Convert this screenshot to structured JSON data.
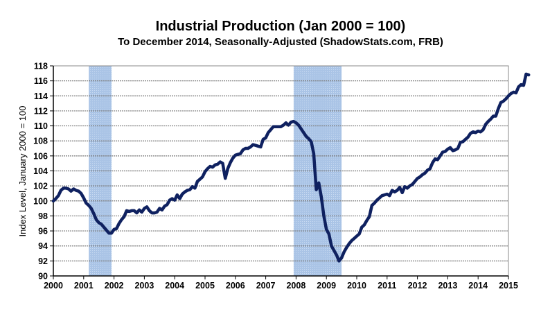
{
  "chart_data": {
    "type": "line",
    "title": "Industrial Production (Jan 2000 = 100)",
    "subtitle": "To December 2014, Seasonally-Adjusted (ShadowStats.com, FRB)",
    "xlabel": "",
    "ylabel": "Index Level, January 2000 = 100",
    "xlim": [
      2000,
      2015
    ],
    "ylim": [
      90,
      118
    ],
    "x_ticks": [
      "2000",
      "2001",
      "2002",
      "2003",
      "2004",
      "2005",
      "2006",
      "2007",
      "2008",
      "2009",
      "2010",
      "2011",
      "2012",
      "2013",
      "2014",
      "2015"
    ],
    "y_ticks": [
      "90",
      "92",
      "94",
      "96",
      "98",
      "100",
      "102",
      "104",
      "106",
      "108",
      "110",
      "112",
      "114",
      "116",
      "118"
    ],
    "grid": "horizontal",
    "legend": "none",
    "recessions": [
      {
        "start": 2001.17,
        "end": 2001.92
      },
      {
        "start": 2007.92,
        "end": 2009.5
      }
    ],
    "colors": {
      "line": "#0f2160",
      "recession": "#aac4e6",
      "grid": "#7a7a7a",
      "axis": "#000000"
    },
    "series": [
      {
        "name": "Industrial Production Index",
        "start": 2000.0,
        "step": 0.08333,
        "values": [
          100.0,
          100.3,
          100.7,
          101.4,
          101.7,
          101.7,
          101.6,
          101.3,
          101.6,
          101.4,
          101.3,
          101.0,
          100.4,
          99.7,
          99.4,
          99.0,
          98.3,
          97.5,
          97.1,
          96.9,
          96.5,
          96.1,
          95.7,
          95.7,
          96.2,
          96.3,
          97.0,
          97.5,
          97.9,
          98.7,
          98.6,
          98.7,
          98.7,
          98.4,
          98.8,
          98.5,
          99.0,
          99.2,
          98.7,
          98.4,
          98.4,
          98.5,
          99.0,
          98.8,
          99.3,
          99.5,
          100.1,
          100.3,
          100.1,
          100.8,
          100.3,
          100.9,
          101.2,
          101.4,
          101.5,
          101.9,
          101.7,
          102.6,
          102.9,
          103.2,
          103.9,
          104.3,
          104.6,
          104.5,
          104.8,
          104.9,
          105.2,
          105.0,
          103.0,
          104.3,
          105.1,
          105.7,
          106.1,
          106.2,
          106.3,
          106.8,
          107.0,
          107.0,
          107.2,
          107.5,
          107.4,
          107.3,
          107.2,
          108.2,
          108.4,
          109.1,
          109.5,
          109.9,
          109.9,
          109.9,
          109.9,
          110.1,
          110.4,
          110.1,
          110.5,
          110.6,
          110.4,
          110.1,
          109.6,
          109.1,
          108.6,
          108.3,
          107.9,
          106.3,
          101.5,
          102.4,
          100.5,
          98.0,
          96.2,
          95.6,
          94.0,
          93.4,
          92.8,
          92.0,
          92.4,
          93.2,
          93.8,
          94.3,
          94.7,
          95.0,
          95.3,
          95.6,
          96.5,
          96.8,
          97.4,
          97.9,
          99.4,
          99.7,
          100.1,
          100.4,
          100.7,
          100.8,
          100.9,
          100.7,
          101.4,
          101.2,
          101.4,
          101.8,
          101.1,
          101.9,
          101.7,
          102.0,
          102.2,
          102.6,
          103.0,
          103.2,
          103.5,
          103.7,
          104.1,
          104.3,
          105.1,
          105.6,
          105.5,
          106.0,
          106.5,
          106.6,
          106.9,
          107.1,
          106.7,
          106.8,
          107.0,
          107.8,
          107.9,
          108.2,
          108.5,
          109.0,
          109.2,
          109.1,
          109.3,
          109.2,
          109.5,
          110.2,
          110.6,
          110.9,
          111.3,
          111.3,
          112.3,
          113.1,
          113.3,
          113.6,
          114.0,
          114.3,
          114.5,
          114.4,
          115.2,
          115.5,
          115.4,
          116.9,
          116.8
        ]
      }
    ]
  }
}
